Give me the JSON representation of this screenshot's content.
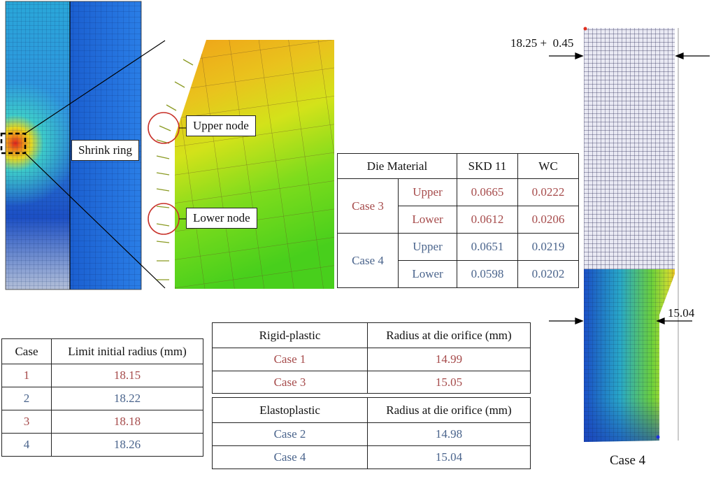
{
  "labels": {
    "shrink_ring": "Shrink ring",
    "upper_node": "Upper node",
    "lower_node": "Lower node",
    "top_dimension": "18.25 +  0.45",
    "orifice_dimension": "15.04",
    "case4_caption": "Case 4"
  },
  "die_table": {
    "header": "Die Material",
    "columns": [
      "SKD 11",
      "WC"
    ],
    "rows": [
      {
        "case": "Case 3",
        "node": "Upper",
        "values": [
          "0.0665",
          "0.0222"
        ]
      },
      {
        "case": "Case 3",
        "node": "Lower",
        "values": [
          "0.0612",
          "0.0206"
        ]
      },
      {
        "case": "Case 4",
        "node": "Upper",
        "values": [
          "0.0651",
          "0.0219"
        ]
      },
      {
        "case": "Case 4",
        "node": "Lower",
        "values": [
          "0.0598",
          "0.0202"
        ]
      }
    ]
  },
  "limit_table": {
    "headers": [
      "Case",
      "Limit initial radius (mm)"
    ],
    "rows": [
      {
        "case": "1",
        "value": "18.15"
      },
      {
        "case": "2",
        "value": "18.22"
      },
      {
        "case": "3",
        "value": "18.18"
      },
      {
        "case": "4",
        "value": "18.26"
      }
    ]
  },
  "rigid_table": {
    "headers": [
      "Rigid-plastic",
      "Radius at die orifice (mm)"
    ],
    "rows": [
      {
        "case": "Case 1",
        "value": "14.99"
      },
      {
        "case": "Case 3",
        "value": "15.05"
      }
    ]
  },
  "elasto_table": {
    "headers": [
      "Elastoplastic",
      "Radius at die orifice (mm)"
    ],
    "rows": [
      {
        "case": "Case 2",
        "value": "14.98"
      },
      {
        "case": "Case 4",
        "value": "15.04"
      }
    ]
  },
  "colors": {
    "case_odd": "#a64b4b",
    "case_even": "#4a648c",
    "mesh_blue": "#1a5fcf",
    "mesh_cyan": "#3fd3c8",
    "mesh_green": "#5ad21c",
    "mesh_orange": "#f0a218",
    "mesh_red": "#e0221a"
  }
}
